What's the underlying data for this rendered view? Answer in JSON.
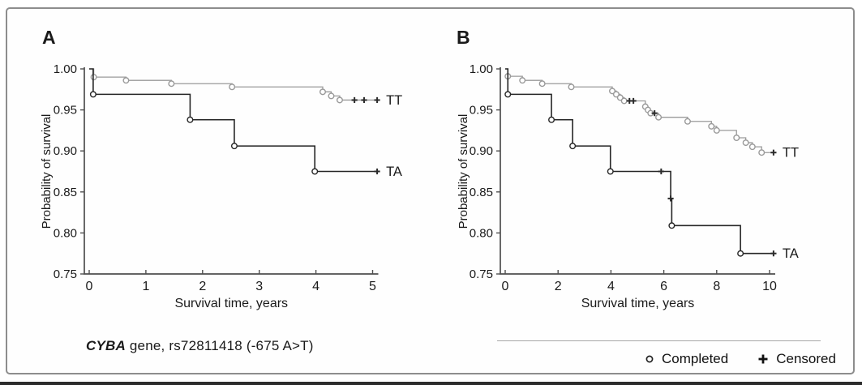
{
  "figure": {
    "panel_labels": [
      "A",
      "B"
    ],
    "caption": {
      "gene": "CYBA",
      "rest": " gene, rs72811418 (-675 A>T)"
    },
    "legend": {
      "completed": "Completed",
      "censored": "Censored",
      "position": "bottom-right"
    },
    "colors": {
      "axis": "#4f4f4f",
      "text": "#1a1a1a",
      "censored_marker": "#2b2b2b",
      "frame_border": "#8d8d8d",
      "legend_line": "#a8a8a8"
    }
  },
  "chart_data": [
    {
      "type": "line",
      "subtype": "kaplan-meier-step",
      "panel_label": "A",
      "title": "",
      "xlabel": "Survival time, years",
      "ylabel": "Probability of survival",
      "xlim": [
        0,
        5
      ],
      "ylim": [
        0.75,
        1.0
      ],
      "grid": false,
      "xticks": {
        "values": [
          0,
          1,
          2,
          3,
          4,
          5
        ],
        "labels": [
          "0",
          "1",
          "2",
          "3",
          "4",
          "5"
        ]
      },
      "yticks": {
        "values": [
          1.0,
          0.95,
          0.9,
          0.85,
          0.8,
          0.75
        ],
        "labels": [
          "1.00",
          "0.95",
          "0.90",
          "0.85",
          "0.80",
          "0.75"
        ]
      },
      "series": [
        {
          "name": "TT",
          "color": "#9a9a9a",
          "line_width": 1.3,
          "start": [
            0,
            1.0
          ],
          "end_time": 5.08,
          "drops": [
            [
              0.08,
              0.99
            ],
            [
              0.65,
              0.986
            ],
            [
              1.45,
              0.982
            ],
            [
              2.52,
              0.978
            ],
            [
              4.12,
              0.972
            ],
            [
              4.27,
              0.967
            ],
            [
              4.42,
              0.962
            ]
          ],
          "censored": [
            [
              4.68,
              0.962
            ],
            [
              4.85,
              0.962
            ],
            [
              5.08,
              0.962
            ]
          ]
        },
        {
          "name": "TA",
          "color": "#262626",
          "line_width": 1.6,
          "start": [
            0,
            1.0
          ],
          "end_time": 5.08,
          "drops": [
            [
              0.07,
              0.969
            ],
            [
              1.78,
              0.938
            ],
            [
              2.56,
              0.906
            ],
            [
              3.98,
              0.875
            ]
          ],
          "censored": [
            [
              5.08,
              0.875
            ]
          ]
        }
      ]
    },
    {
      "type": "line",
      "subtype": "kaplan-meier-step",
      "panel_label": "B",
      "title": "",
      "xlabel": "Survival time, years",
      "ylabel": "Probability of survival",
      "xlim": [
        0,
        10
      ],
      "ylim": [
        0.75,
        1.0
      ],
      "grid": false,
      "xticks": {
        "values": [
          0,
          2,
          4,
          6,
          8,
          10
        ],
        "labels": [
          "0",
          "2",
          "4",
          "6",
          "8",
          "10"
        ]
      },
      "yticks": {
        "values": [
          1.0,
          0.95,
          0.9,
          0.85,
          0.8,
          0.75
        ],
        "labels": [
          "1.00",
          "0.95",
          "0.90",
          "0.85",
          "0.80",
          "0.75"
        ]
      },
      "series": [
        {
          "name": "TT",
          "color": "#9a9a9a",
          "line_width": 1.3,
          "start": [
            0,
            1.0
          ],
          "end_time": 10.15,
          "drops": [
            [
              0.1,
              0.991
            ],
            [
              0.65,
              0.986
            ],
            [
              1.4,
              0.982
            ],
            [
              2.5,
              0.978
            ],
            [
              4.05,
              0.973
            ],
            [
              4.2,
              0.969
            ],
            [
              4.35,
              0.965
            ],
            [
              4.5,
              0.961
            ],
            [
              5.3,
              0.954
            ],
            [
              5.4,
              0.95
            ],
            [
              5.5,
              0.946
            ],
            [
              5.8,
              0.941
            ],
            [
              6.9,
              0.936
            ],
            [
              7.8,
              0.93
            ],
            [
              8.0,
              0.925
            ],
            [
              8.75,
              0.916
            ],
            [
              9.1,
              0.91
            ],
            [
              9.35,
              0.905
            ],
            [
              9.7,
              0.898
            ]
          ],
          "censored": [
            [
              4.7,
              0.961
            ],
            [
              4.85,
              0.961
            ],
            [
              5.65,
              0.946
            ],
            [
              10.15,
              0.898
            ]
          ]
        },
        {
          "name": "TA",
          "color": "#262626",
          "line_width": 1.6,
          "start": [
            0,
            1.0
          ],
          "end_time": 10.15,
          "drops": [
            [
              0.1,
              0.969
            ],
            [
              1.75,
              0.938
            ],
            [
              2.55,
              0.906
            ],
            [
              3.98,
              0.875
            ],
            [
              6.26,
              0.842,
              "x"
            ],
            [
              6.3,
              0.809
            ],
            [
              8.9,
              0.775
            ]
          ],
          "censored": [
            [
              5.9,
              0.875
            ],
            [
              10.15,
              0.775
            ]
          ]
        }
      ]
    }
  ]
}
